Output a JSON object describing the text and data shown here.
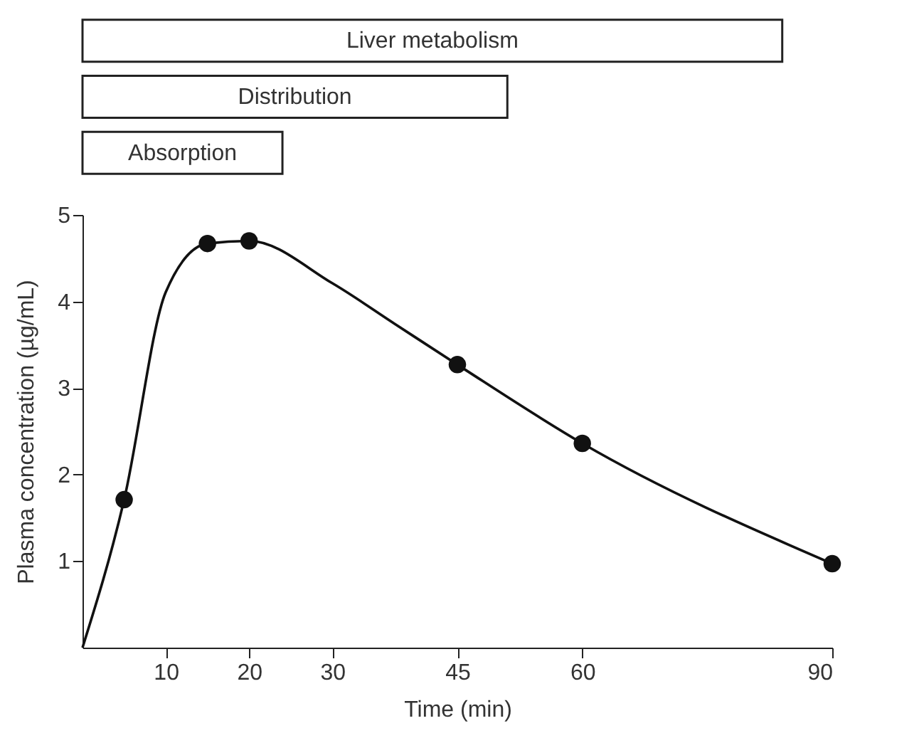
{
  "chart_data": [
    {
      "type": "bar",
      "orientation": "horizontal",
      "categories": [
        "Liver metabolism",
        "Distribution",
        "Absorption"
      ],
      "values": [
        84,
        51,
        24
      ],
      "color": "#ffffff",
      "xlim": [
        0,
        90
      ],
      "tick_labels": false
    },
    {
      "type": "line",
      "xlabel": "Time (min)",
      "ylabel": "Plasma concentration (µg/mL)",
      "xlim": [
        0,
        90
      ],
      "ylim": [
        0,
        5
      ],
      "xticks": [
        10,
        20,
        30,
        45,
        60,
        90
      ],
      "yticks": [
        1,
        2,
        3,
        4,
        5
      ],
      "grid": false,
      "legend": false,
      "series": [
        {
          "type": "line",
          "color": "#111111",
          "marker": "none",
          "line_style": "solid",
          "x": [
            0,
            5,
            10,
            15,
            20,
            30,
            37.5,
            45,
            60,
            90
          ],
          "values": [
            0,
            1.71,
            4.11,
            4.67,
            4.7,
            4.21,
            3.74,
            3.27,
            2.36,
            0.97
          ]
        },
        {
          "type": "scatter",
          "color": "#111111",
          "marker": "circle",
          "x": [
            5,
            15,
            20,
            45,
            60,
            90
          ],
          "values": [
            1.71,
            4.67,
            4.7,
            3.27,
            2.36,
            0.97
          ]
        }
      ]
    }
  ]
}
